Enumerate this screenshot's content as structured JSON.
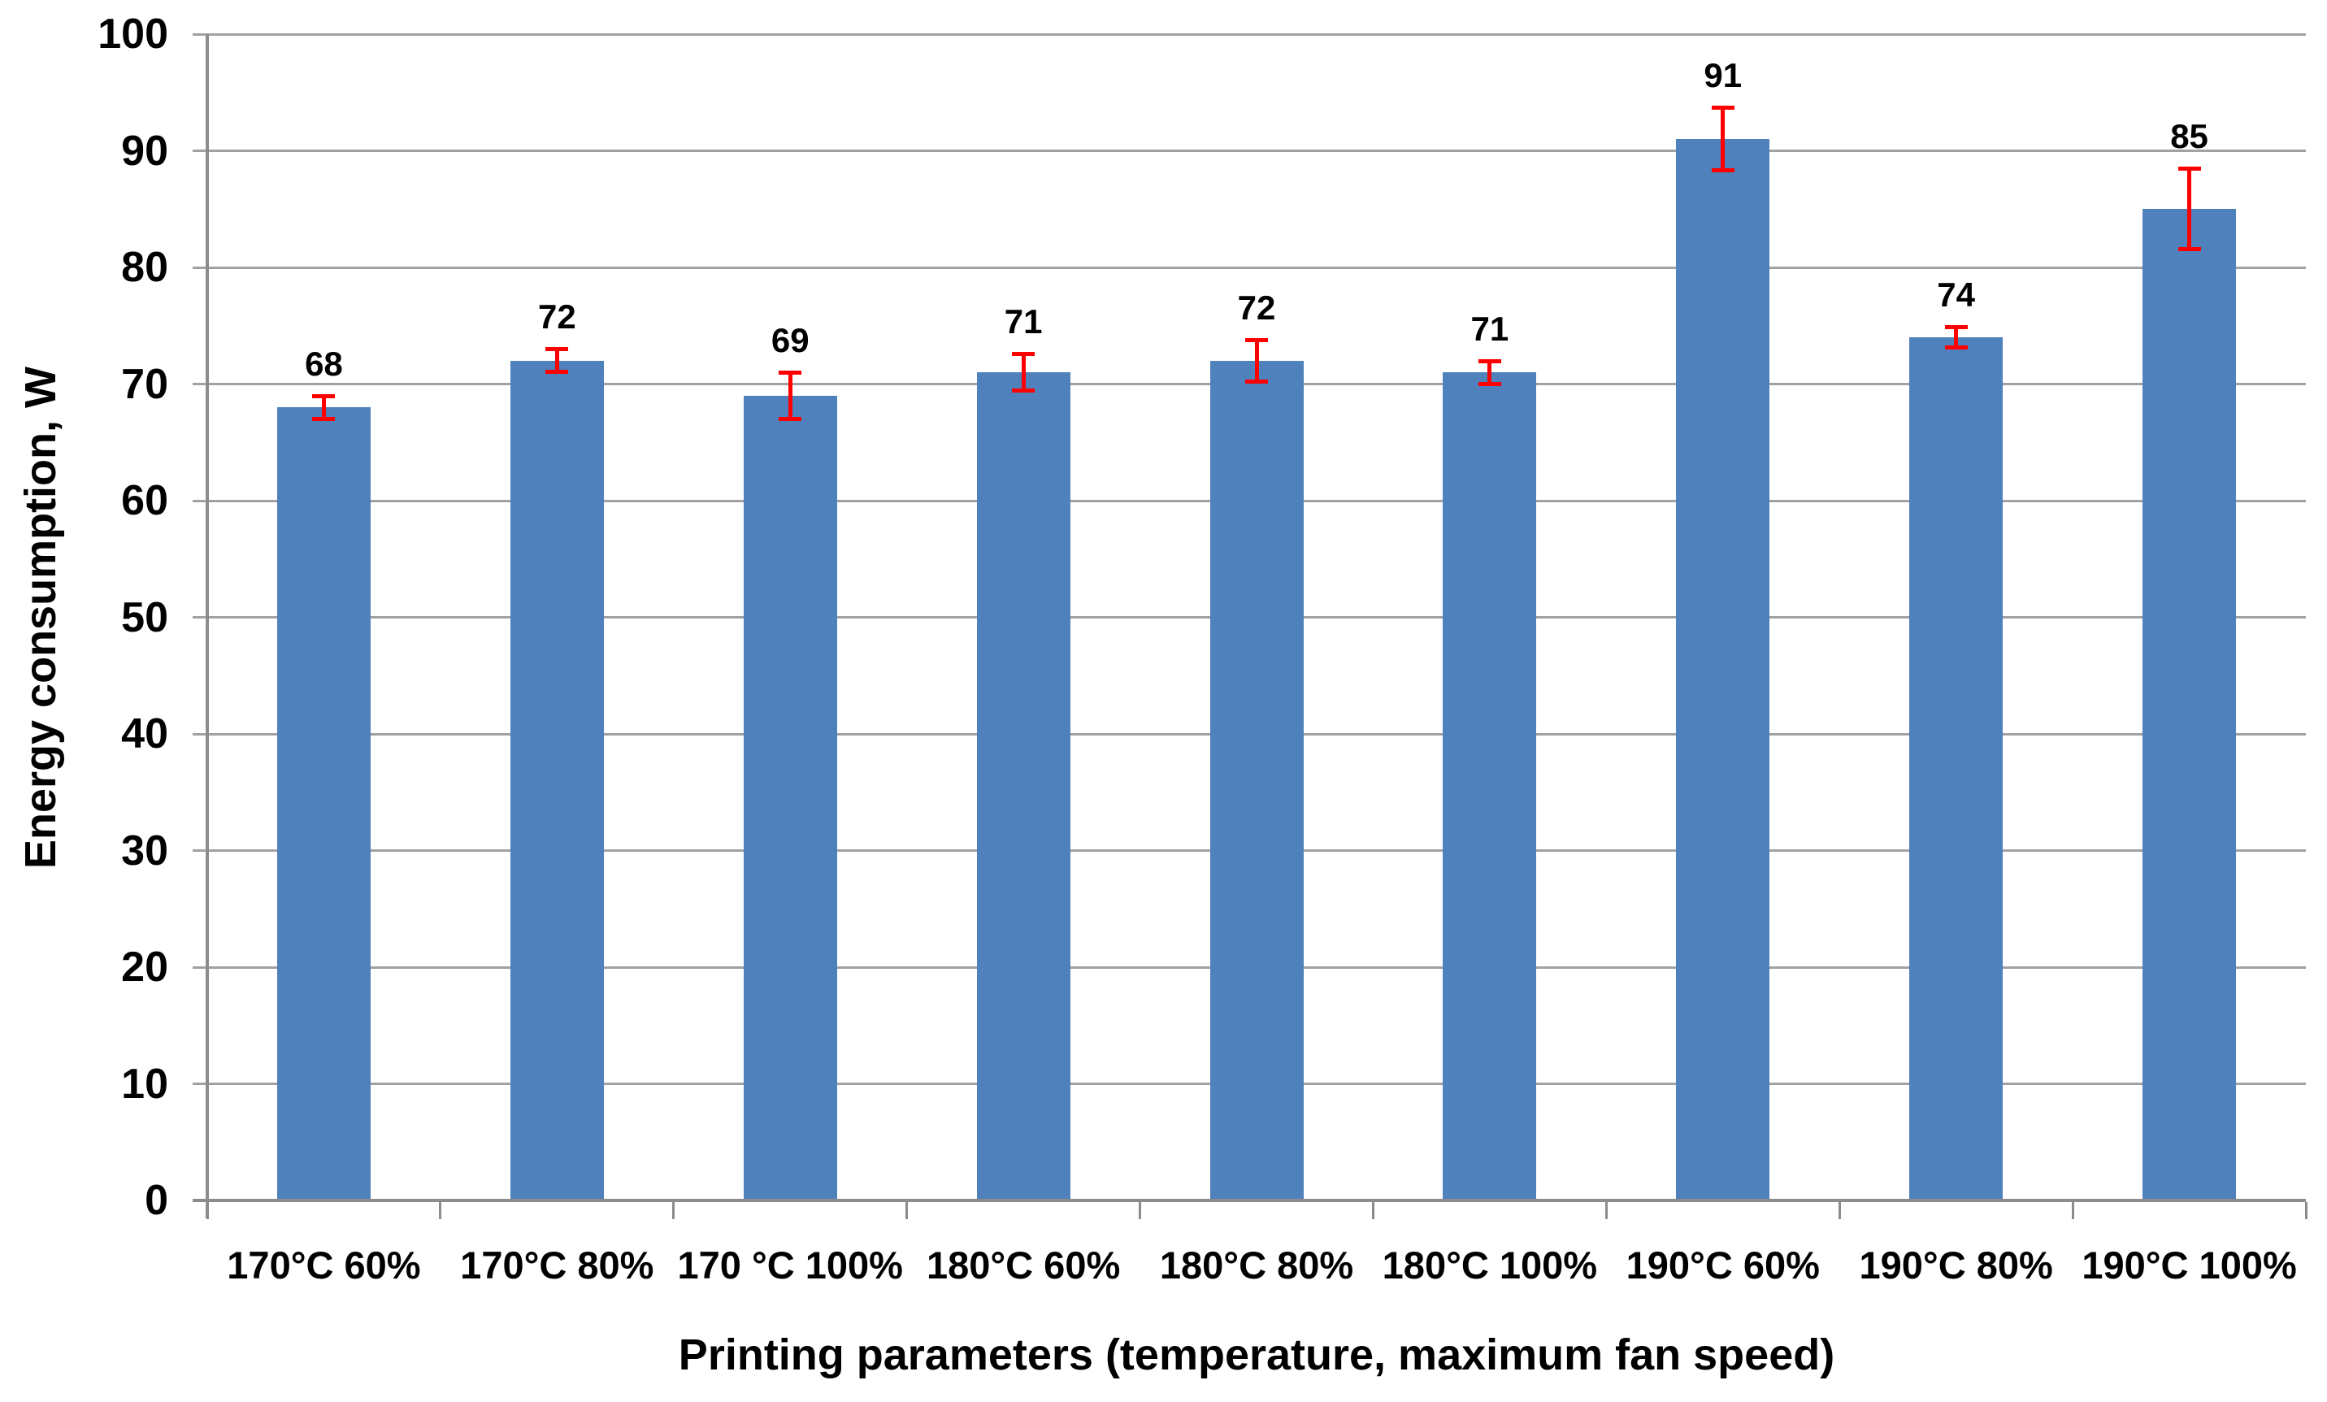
{
  "chart_data": {
    "type": "bar",
    "title": "",
    "categories": [
      "170°C 60%",
      "170°C 80%",
      "170 °C 100%",
      "180°C 60%",
      "180°C 80%",
      "180°C 100%",
      "190°C 60%",
      "190°C 80%",
      "190°C 100%"
    ],
    "values": [
      68,
      72,
      69,
      71,
      72,
      71,
      91,
      74,
      85
    ],
    "data_labels": [
      "68",
      "72",
      "69",
      "71",
      "72",
      "71",
      "91",
      "74",
      "85"
    ],
    "error_bars_plus_minus": [
      1.0,
      1.0,
      2.0,
      1.6,
      1.8,
      1.0,
      2.7,
      0.9,
      3.5
    ],
    "xlabel": "Printing parameters (temperature, maximum fan speed)",
    "ylabel": "Energy consumption, W",
    "ylim": [
      0,
      100
    ],
    "yticks": [
      0,
      10,
      20,
      30,
      40,
      50,
      60,
      70,
      80,
      90,
      100
    ],
    "grid": "horizontal",
    "legend": "none",
    "colors": {
      "bar": "#4F81BD",
      "error_bar": "#FE0000",
      "gridline": "#A1A1A1",
      "axis": "#8C8C8C",
      "text": "#000000",
      "background": "#FFFFFF"
    }
  }
}
